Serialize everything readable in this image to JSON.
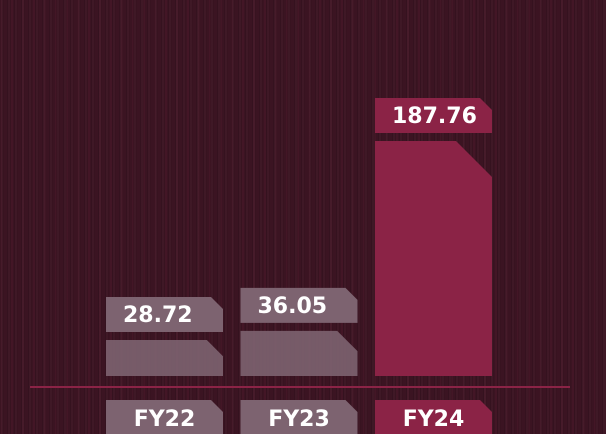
{
  "chart_data": {
    "type": "bar",
    "categories": [
      "FY22",
      "FY23",
      "FY24"
    ],
    "values": [
      28.72,
      36.05,
      187.76
    ],
    "colors": [
      "#7d6370",
      "#7d6370",
      "#8b2346"
    ]
  }
}
